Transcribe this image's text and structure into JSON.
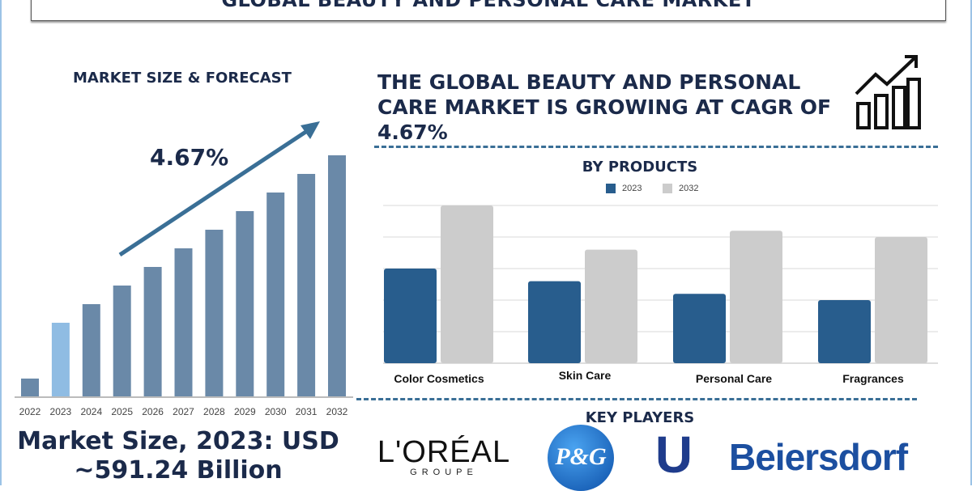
{
  "title": "GLOBAL BEAUTY AND PERSONAL CARE MARKET",
  "left": {
    "heading": "MARKET SIZE & FORECAST",
    "cagr": "4.67%",
    "market_size_line1": "Market Size, 2023: USD",
    "market_size_line2": "~591.24 Billion"
  },
  "headline": "THE GLOBAL BEAUTY AND PERSONAL CARE MARKET IS GROWING AT CAGR OF 4.67%",
  "key_players": {
    "heading": "KEY PLAYERS",
    "logos": [
      "L'ORÉAL GROUPE",
      "P&G",
      "Unilever",
      "Beiersdorf"
    ]
  },
  "chart_data": [
    {
      "type": "bar",
      "title": "MARKET SIZE & FORECAST",
      "categories": [
        "2022",
        "2023",
        "2024",
        "2025",
        "2026",
        "2027",
        "2028",
        "2029",
        "2030",
        "2031",
        "2032"
      ],
      "values": [
        22,
        91,
        114,
        137,
        160,
        183,
        206,
        229,
        252,
        275,
        298
      ],
      "highlight": "2023",
      "colors": {
        "bar": "#6a89a8",
        "highlight": "#8fbce3"
      },
      "annotation": "4.67%"
    },
    {
      "type": "bar",
      "title": "BY PRODUCTS",
      "categories": [
        "Color Cosmetics",
        "Skin Care",
        "Personal Care",
        "Fragrances"
      ],
      "series": [
        {
          "name": "2023",
          "values": [
            3.0,
            2.6,
            2.2,
            2.0
          ],
          "color": "#285d8d"
        },
        {
          "name": "2032",
          "values": [
            5.0,
            3.6,
            4.2,
            4.0
          ],
          "color": "#cccccc"
        }
      ],
      "ylim": [
        0,
        5
      ],
      "grid": true,
      "legend": "top"
    }
  ]
}
